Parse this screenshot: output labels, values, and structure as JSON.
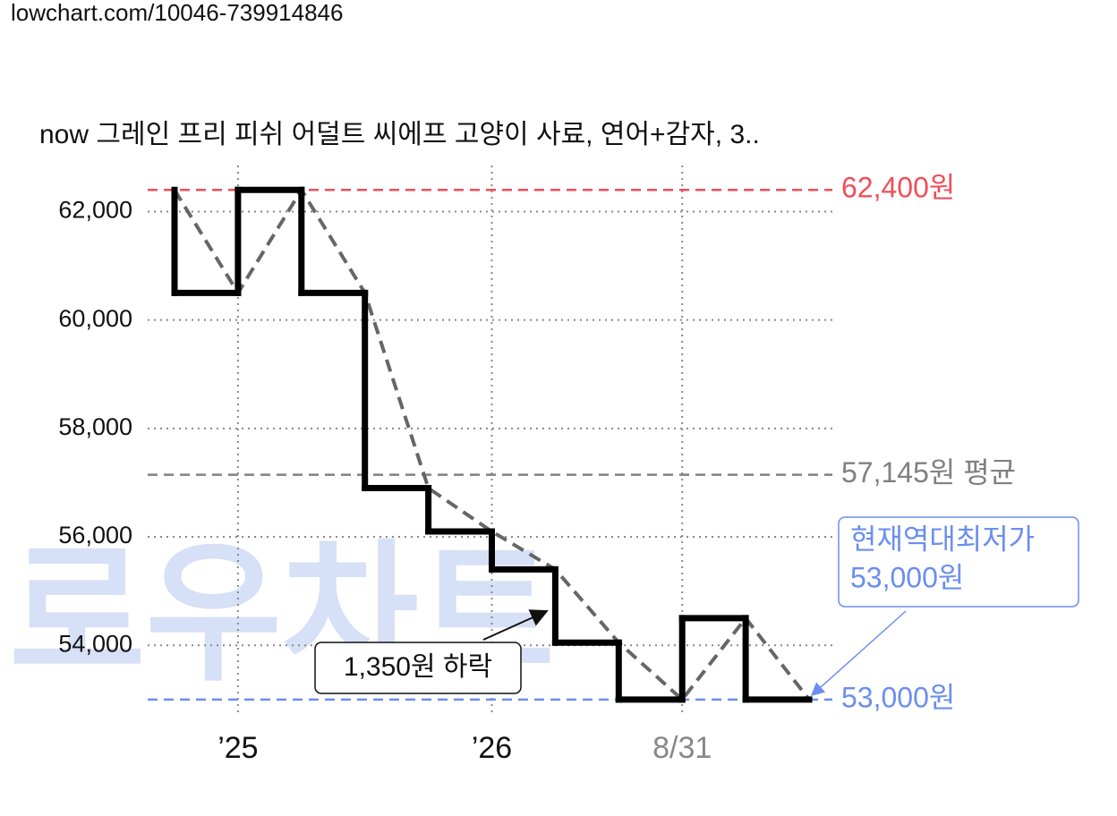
{
  "url": "lowchart.com/10046-739914846",
  "chart_data": {
    "type": "line",
    "title": "now 그레인 프리 피쉬 어덜트 씨에프 고양이 사료, 연어+감자, 3..",
    "categories": [
      null,
      "’25",
      null,
      null,
      null,
      "’26",
      null,
      null,
      "8/31",
      null,
      null
    ],
    "category_colors": [
      null,
      "#111111",
      null,
      null,
      null,
      "#111111",
      null,
      null,
      "#888888",
      null,
      null
    ],
    "values": [
      62400,
      60500,
      62400,
      60500,
      56900,
      56100,
      55400,
      54050,
      53000,
      54500,
      53000
    ],
    "color": "#000000",
    "trend_color": "#666666",
    "ylim": [
      52700,
      62850
    ],
    "yticks": [
      {
        "value": 54000,
        "label": "54,000"
      },
      {
        "value": 56000,
        "label": "56,000"
      },
      {
        "value": 58000,
        "label": "58,000"
      },
      {
        "value": 60000,
        "label": "60,000"
      },
      {
        "value": 62000,
        "label": "62,000"
      }
    ],
    "grid": true,
    "reference_lines": [
      {
        "value": 62400,
        "label": "62,400원",
        "color": "#ef4f57"
      },
      {
        "value": 57145,
        "label": "57,145원 평균",
        "color": "#808080"
      },
      {
        "value": 53000,
        "label": "53,000원",
        "color": "#6b8ef0"
      }
    ],
    "annotation": "1,350원 하락",
    "callout": [
      "현재역대최저가",
      "53,000원"
    ],
    "watermark": "로우차트"
  }
}
